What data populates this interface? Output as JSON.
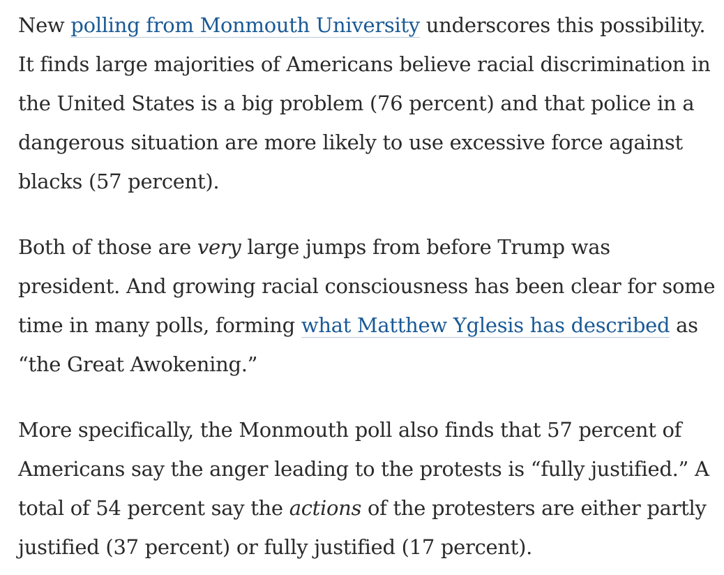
{
  "paragraphs": [
    {
      "p1_pre": "New ",
      "p1_link": "polling from Monmouth University",
      "p1_post": " underscores this possibility. It finds large majorities of Americans believe racial discrimination in the United States is a big problem (76 percent) and that police in a dangerous situation are more likely to use excessive force against blacks (57 percent)."
    },
    {
      "p2_pre": "Both of those are ",
      "p2_em": "very",
      "p2_mid": " large jumps from before Trump was president. And growing racial consciousness has been clear for some time in many polls, forming ",
      "p2_link": "what Matthew Yglesis has described",
      "p2_post": " as “the Great Awokening.”"
    },
    {
      "p3_pre": "More specifically, the Monmouth poll also finds that 57 percent of Americans say the anger leading to the protests is “fully justified.” A total of 54 percent say the ",
      "p3_em": "actions",
      "p3_post": " of the protesters are either partly justified (37 percent) or fully justified (17 percent)."
    }
  ],
  "colors": {
    "text": "#2a2a2a",
    "link": "#1a5a96",
    "background": "#ffffff"
  }
}
